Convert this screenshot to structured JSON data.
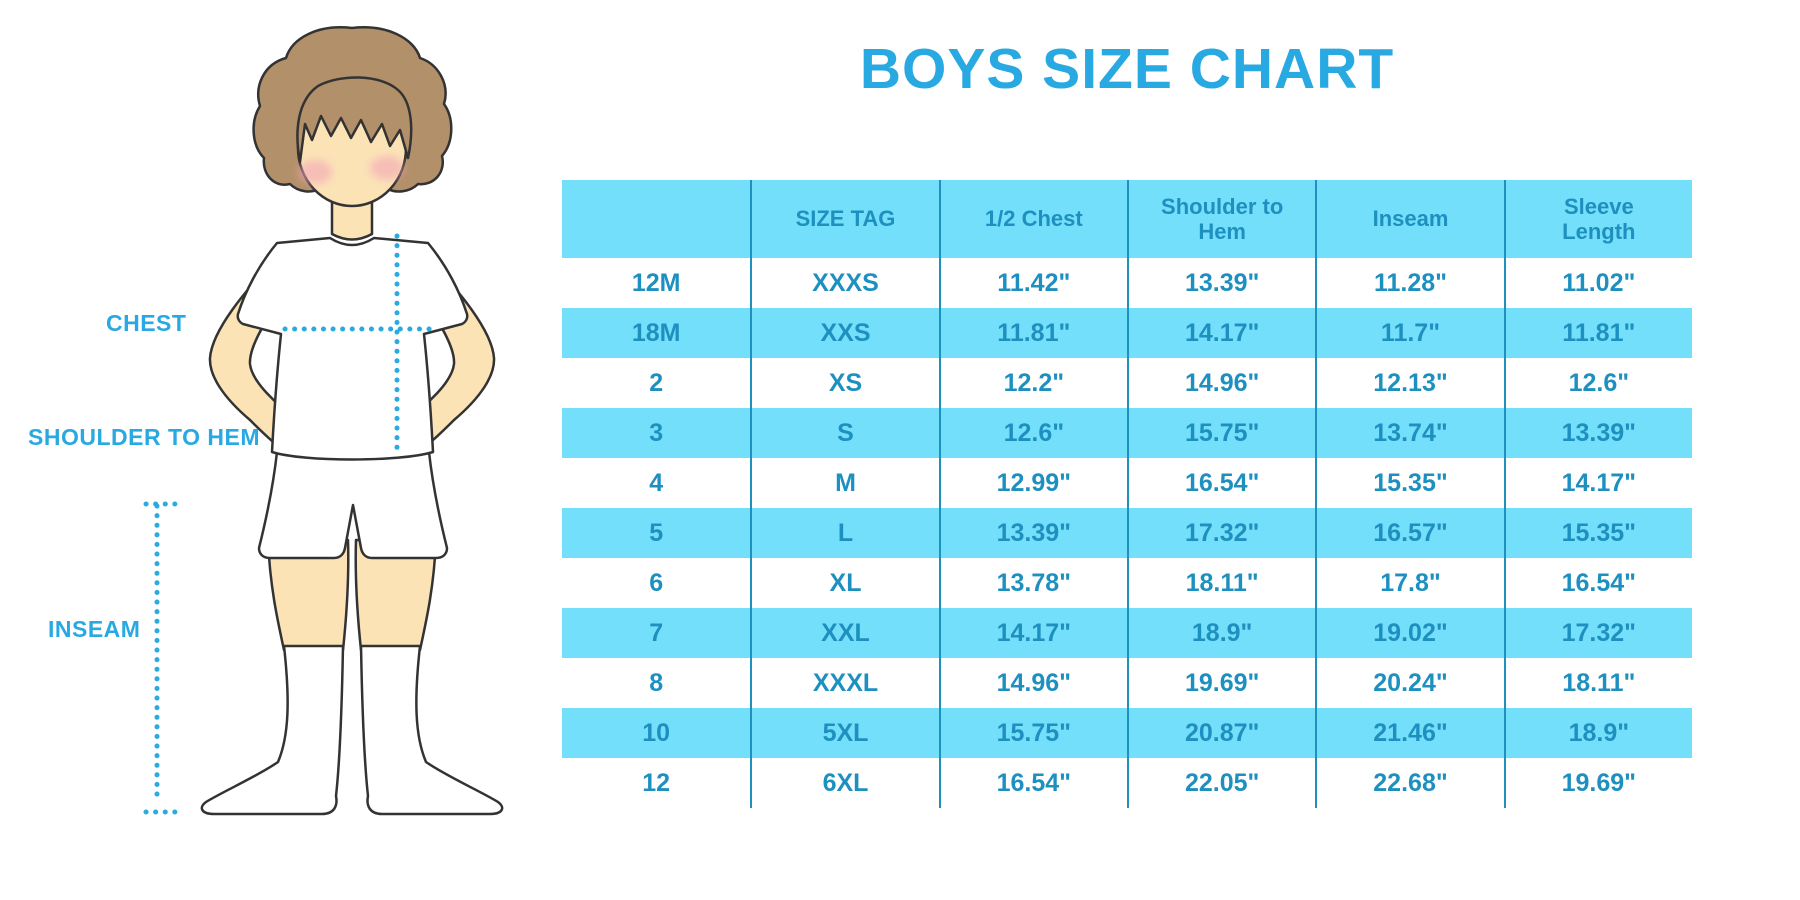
{
  "title": "BOYS SIZE CHART",
  "figure": {
    "labels": {
      "chest": "CHEST",
      "shoulder_to_hem": "SHOULDER TO HEM",
      "inseam": "INSEAM"
    },
    "colors": {
      "skin": "#FBE3B6",
      "hair": "#B2906A",
      "outline": "#333333",
      "cheek": "#F3A6B6",
      "clothes": "#FFFFFF"
    }
  },
  "colors": {
    "accent_blue": "#29A9E1",
    "table_fill": "#74DFFA",
    "table_text": "#1E90C0",
    "divider": "#2090BF",
    "dotted_line": "#29ABE2"
  },
  "chart_data": {
    "type": "table",
    "title": "BOYS SIZE CHART",
    "columns": [
      "",
      "SIZE TAG",
      "1/2 Chest",
      "Shoulder to Hem",
      "Inseam",
      "Sleeve Length"
    ],
    "rows": [
      [
        "12M",
        "XXXS",
        "11.42\"",
        "13.39\"",
        "11.28\"",
        "11.02\""
      ],
      [
        "18M",
        "XXS",
        "11.81\"",
        "14.17\"",
        "11.7\"",
        "11.81\""
      ],
      [
        "2",
        "XS",
        "12.2\"",
        "14.96\"",
        "12.13\"",
        "12.6\""
      ],
      [
        "3",
        "S",
        "12.6\"",
        "15.75\"",
        "13.74\"",
        "13.39\""
      ],
      [
        "4",
        "M",
        "12.99\"",
        "16.54\"",
        "15.35\"",
        "14.17\""
      ],
      [
        "5",
        "L",
        "13.39\"",
        "17.32\"",
        "16.57\"",
        "15.35\""
      ],
      [
        "6",
        "XL",
        "13.78\"",
        "18.11\"",
        "17.8\"",
        "16.54\""
      ],
      [
        "7",
        "XXL",
        "14.17\"",
        "18.9\"",
        "19.02\"",
        "17.32\""
      ],
      [
        "8",
        "XXXL",
        "14.96\"",
        "19.69\"",
        "20.24\"",
        "18.11\""
      ],
      [
        "10",
        "5XL",
        "15.75\"",
        "20.87\"",
        "21.46\"",
        "18.9\""
      ],
      [
        "12",
        "6XL",
        "16.54\"",
        "22.05\"",
        "22.68\"",
        "19.69\""
      ]
    ]
  }
}
